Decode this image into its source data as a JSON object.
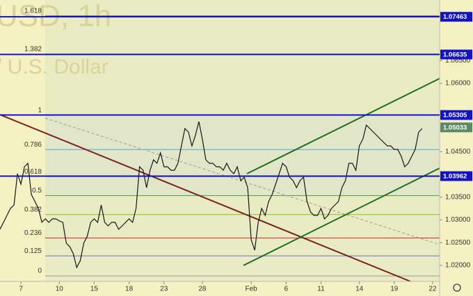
{
  "watermark": {
    "symbol": "USD, 1h",
    "description": "/ U.S. Dollar"
  },
  "chart_data": {
    "type": "line",
    "color": "#151515",
    "x": [
      0,
      1,
      2,
      3,
      4,
      5,
      6,
      7,
      8,
      9,
      10,
      11,
      12,
      13,
      14,
      15,
      16,
      17,
      18,
      19,
      20,
      21,
      22,
      23,
      24,
      25,
      26,
      27,
      28,
      29,
      30,
      31,
      32,
      33,
      34,
      35,
      36,
      37,
      38,
      39,
      40,
      41,
      42,
      43,
      44,
      45,
      46,
      47,
      48,
      49,
      50,
      51,
      52,
      53,
      54,
      55,
      56,
      57,
      58,
      59,
      60,
      61,
      62,
      63,
      64,
      65,
      66,
      67,
      68,
      69,
      70,
      71,
      72,
      73,
      74,
      75,
      76,
      77,
      78,
      79,
      80,
      81,
      82,
      83,
      84,
      85,
      86,
      87,
      88,
      89,
      90,
      91,
      92,
      93,
      94,
      95,
      96,
      97,
      98,
      99,
      100,
      101,
      102,
      103,
      104,
      105,
      106,
      107,
      108,
      109,
      110,
      111,
      112,
      113,
      114,
      115,
      116,
      117,
      118,
      119,
      120,
      121
    ],
    "values": [
      1.02794,
      1.02947,
      1.03099,
      1.03252,
      1.03328,
      1.04015,
      1.03786,
      1.04168,
      1.04244,
      1.03557,
      1.03405,
      1.03252,
      1.02947,
      1.03023,
      1.02947,
      1.03023,
      1.03023,
      1.02977,
      1.02947,
      1.02489,
      1.02412,
      1.0226,
      1.01954,
      1.02107,
      1.02489,
      1.02641,
      1.02947,
      1.03023,
      1.02947,
      1.03328,
      1.02947,
      1.0287,
      1.02947,
      1.02947,
      1.02794,
      1.0287,
      1.02947,
      1.03023,
      1.02947,
      1.03252,
      1.04168,
      1.04092,
      1.0371,
      1.04092,
      1.04321,
      1.04244,
      1.04473,
      1.04168,
      1.04168,
      1.04092,
      1.04092,
      1.04244,
      1.04626,
      1.05008,
      1.04931,
      1.04626,
      1.04855,
      1.0516,
      1.04779,
      1.04321,
      1.04244,
      1.04244,
      1.04168,
      1.04168,
      1.04092,
      1.04244,
      1.04092,
      1.04015,
      1.04168,
      1.03863,
      1.03939,
      1.0371,
      1.02565,
      1.02336,
      1.02947,
      1.03252,
      1.03099,
      1.03405,
      1.03557,
      1.03786,
      1.04015,
      1.04244,
      1.04168,
      1.03939,
      1.03863,
      1.0371,
      1.03863,
      1.03939,
      1.03405,
      1.03176,
      1.03099,
      1.03099,
      1.03252,
      1.03023,
      1.03099,
      1.03252,
      1.03328,
      1.03405,
      1.0371,
      1.03863,
      1.04244,
      1.04244,
      1.04092,
      1.04626,
      1.04779,
      1.05084,
      1.05008,
      1.04931,
      1.04855,
      1.04779,
      1.04702,
      1.04626,
      1.04626,
      1.0455,
      1.0455,
      1.04397,
      1.04168,
      1.04244,
      1.04397,
      1.0455,
      1.04931,
      1.05008
    ],
    "xlim": [
      0,
      126
    ],
    "ylim": [
      1.01649,
      1.07832
    ],
    "xticks": [
      {
        "value": 6,
        "label": "7"
      },
      {
        "value": 17,
        "label": "10"
      },
      {
        "value": 27,
        "label": "15"
      },
      {
        "value": 37,
        "label": "18"
      },
      {
        "value": 47,
        "label": "23"
      },
      {
        "value": 58,
        "label": "28"
      },
      {
        "value": 72,
        "label": "Feb"
      },
      {
        "value": 82,
        "label": "6"
      },
      {
        "value": 92,
        "label": "11"
      },
      {
        "value": 103,
        "label": "14"
      },
      {
        "value": 113,
        "label": "19"
      },
      {
        "value": 124,
        "label": "22"
      }
    ],
    "yticks": [
      {
        "value": 1.02,
        "label": "1.02000"
      },
      {
        "value": 1.025,
        "label": "1.02500"
      },
      {
        "value": 1.03,
        "label": "1.03000"
      },
      {
        "value": 1.035,
        "label": "1.03500"
      },
      {
        "value": 1.045,
        "label": "1.04500"
      },
      {
        "value": 1.06,
        "label": "1.06000"
      },
      {
        "value": 1.065,
        "label": "1.06500"
      }
    ],
    "levels": [
      1.07463,
      1.06635,
      1.05305,
      1.03962
    ],
    "level_color": "#1212c8",
    "current_price": 1.05033,
    "current_color": "#5d8a66",
    "fib_levels": [
      {
        "ratio": 1.618,
        "price": 1.0748,
        "color": "#2a2a8a"
      },
      {
        "ratio": 1.382,
        "price": 1.06647,
        "color": "#9bbf2a"
      },
      {
        "ratio": 1,
        "price": 1.053,
        "color": "#8a8a8a"
      },
      {
        "ratio": 0.786,
        "price": 1.04545,
        "color": "#4aa8d8"
      },
      {
        "ratio": 0.618,
        "price": 1.03952,
        "color": "#8a8a8a"
      },
      {
        "ratio": 0.5,
        "price": 1.03535,
        "color": "#3fae3f"
      },
      {
        "ratio": 0.382,
        "price": 1.03118,
        "color": "#8fba25"
      },
      {
        "ratio": 0.236,
        "price": 1.02603,
        "color": "#d03030"
      },
      {
        "ratio": 0.125,
        "price": 1.02211,
        "color": "#7070c8"
      },
      {
        "ratio": 0,
        "price": 1.0177,
        "color": "#999999"
      }
    ]
  }
}
